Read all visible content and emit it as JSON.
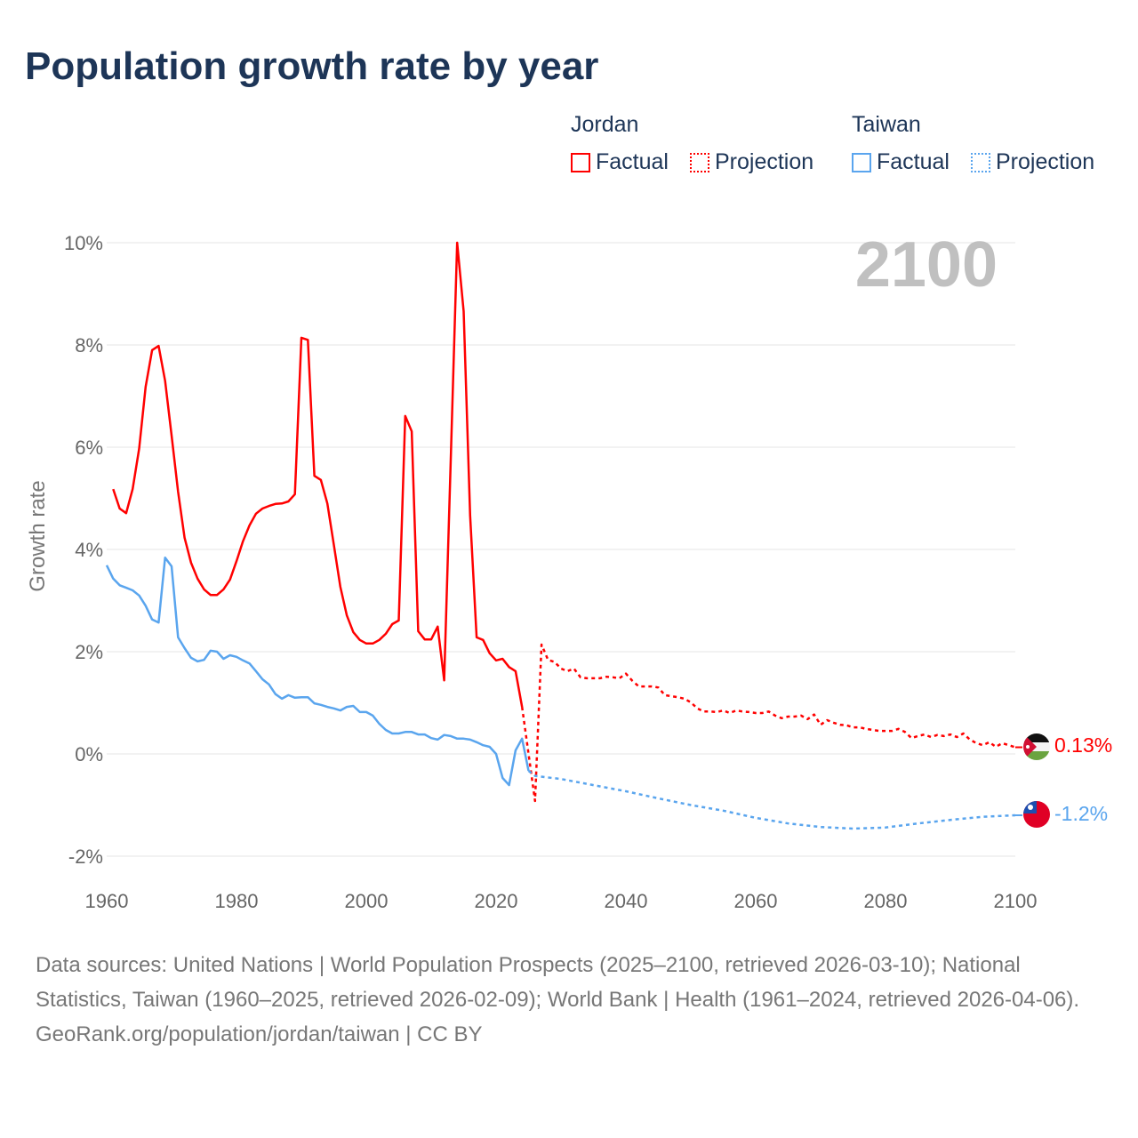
{
  "title": "Population growth rate by year",
  "legend": {
    "groups": [
      {
        "name": "Jordan",
        "color": "#ff0000",
        "factual": "Factual",
        "projection": "Projection"
      },
      {
        "name": "Taiwan",
        "color": "#5aa5ee",
        "factual": "Factual",
        "projection": "Projection"
      }
    ]
  },
  "year_watermark": "2100",
  "end_labels": {
    "jordan": "0.13%",
    "taiwan": "-1.2%"
  },
  "footer": {
    "sources": "Data sources: United Nations | World Population Prospects (2025–2100, retrieved 2026-03-10); National Statistics, Taiwan (1960–2025, retrieved 2026-02-09); World Bank | Health (1961–2024, retrieved 2026-04-06).",
    "credit": "GeoRank.org/population/jordan/taiwan | CC BY"
  },
  "chart_data": {
    "type": "line",
    "ylabel": "Growth rate",
    "xlabel": "",
    "xlim": [
      1960,
      2100
    ],
    "ylim": [
      -2,
      10
    ],
    "x_ticks": [
      "1960",
      "1980",
      "2000",
      "2020",
      "2040",
      "2060",
      "2080",
      "2100"
    ],
    "y_ticks": [
      "10%",
      "8%",
      "6%",
      "4%",
      "2%",
      "0%",
      "-2%"
    ],
    "grid": true,
    "series": [
      {
        "name": "Jordan Factual",
        "color": "#ff0000",
        "style": "solid",
        "start": 1961,
        "values": [
          5.18,
          4.8,
          4.71,
          5.18,
          5.97,
          7.18,
          7.9,
          7.98,
          7.3,
          6.23,
          5.13,
          4.23,
          3.74,
          3.43,
          3.22,
          3.11,
          3.11,
          3.22,
          3.41,
          3.77,
          4.16,
          4.47,
          4.7,
          4.8,
          4.85,
          4.89,
          4.9,
          4.94,
          5.08,
          8.14,
          8.1,
          5.44,
          5.36,
          4.9,
          4.09,
          3.27,
          2.71,
          2.38,
          2.23,
          2.16,
          2.16,
          2.23,
          2.35,
          2.54,
          2.61,
          6.61,
          6.31,
          2.4,
          2.24,
          2.24,
          2.49,
          1.44,
          5.7,
          10.0,
          8.66,
          4.66,
          2.28,
          2.23,
          1.97,
          1.83,
          1.86,
          1.7,
          1.62,
          0.92
        ]
      },
      {
        "name": "Jordan Projection",
        "color": "#ff0000",
        "style": "dotted",
        "start": 2024,
        "values": [
          0.92,
          0.0,
          -0.92,
          2.14,
          1.84,
          1.8,
          1.67,
          1.62,
          1.67,
          1.5,
          1.48,
          1.48,
          1.48,
          1.51,
          1.5,
          1.48,
          1.57,
          1.43,
          1.32,
          1.32,
          1.32,
          1.3,
          1.15,
          1.13,
          1.11,
          1.08,
          1.01,
          0.89,
          0.83,
          0.83,
          0.82,
          0.85,
          0.8,
          0.85,
          0.83,
          0.82,
          0.8,
          0.8,
          0.83,
          0.75,
          0.7,
          0.73,
          0.73,
          0.75,
          0.68,
          0.77,
          0.57,
          0.66,
          0.61,
          0.57,
          0.56,
          0.52,
          0.52,
          0.49,
          0.47,
          0.45,
          0.45,
          0.45,
          0.49,
          0.43,
          0.31,
          0.35,
          0.38,
          0.33,
          0.37,
          0.35,
          0.38,
          0.33,
          0.4,
          0.28,
          0.21,
          0.17,
          0.23,
          0.14,
          0.21,
          0.17,
          0.13
        ]
      },
      {
        "name": "Taiwan Factual",
        "color": "#5aa5ee",
        "style": "solid",
        "start": 1960,
        "values": [
          3.69,
          3.43,
          3.3,
          3.25,
          3.2,
          3.1,
          2.9,
          2.63,
          2.57,
          3.84,
          3.67,
          2.28,
          2.07,
          1.88,
          1.81,
          1.84,
          2.02,
          2.0,
          1.86,
          1.93,
          1.9,
          1.83,
          1.77,
          1.62,
          1.46,
          1.36,
          1.17,
          1.08,
          1.15,
          1.1,
          1.11,
          1.11,
          0.99,
          0.96,
          0.92,
          0.89,
          0.85,
          0.92,
          0.94,
          0.82,
          0.82,
          0.75,
          0.59,
          0.47,
          0.4,
          0.4,
          0.43,
          0.43,
          0.38,
          0.38,
          0.31,
          0.28,
          0.37,
          0.35,
          0.3,
          0.3,
          0.28,
          0.23,
          0.17,
          0.14,
          0.0,
          -0.47,
          -0.61,
          0.07,
          0.3,
          -0.33
        ]
      },
      {
        "name": "Taiwan Projection",
        "color": "#5aa5ee",
        "style": "dotted",
        "start": 2025,
        "step": 5,
        "x": [
          2025,
          2026,
          2030,
          2035,
          2040,
          2045,
          2050,
          2055,
          2060,
          2065,
          2070,
          2075,
          2080,
          2085,
          2090,
          2095,
          2100
        ],
        "values": [
          -0.33,
          -0.43,
          -0.49,
          -0.61,
          -0.73,
          -0.87,
          -1.0,
          -1.11,
          -1.25,
          -1.36,
          -1.43,
          -1.46,
          -1.44,
          -1.36,
          -1.29,
          -1.23,
          -1.2
        ]
      }
    ]
  }
}
